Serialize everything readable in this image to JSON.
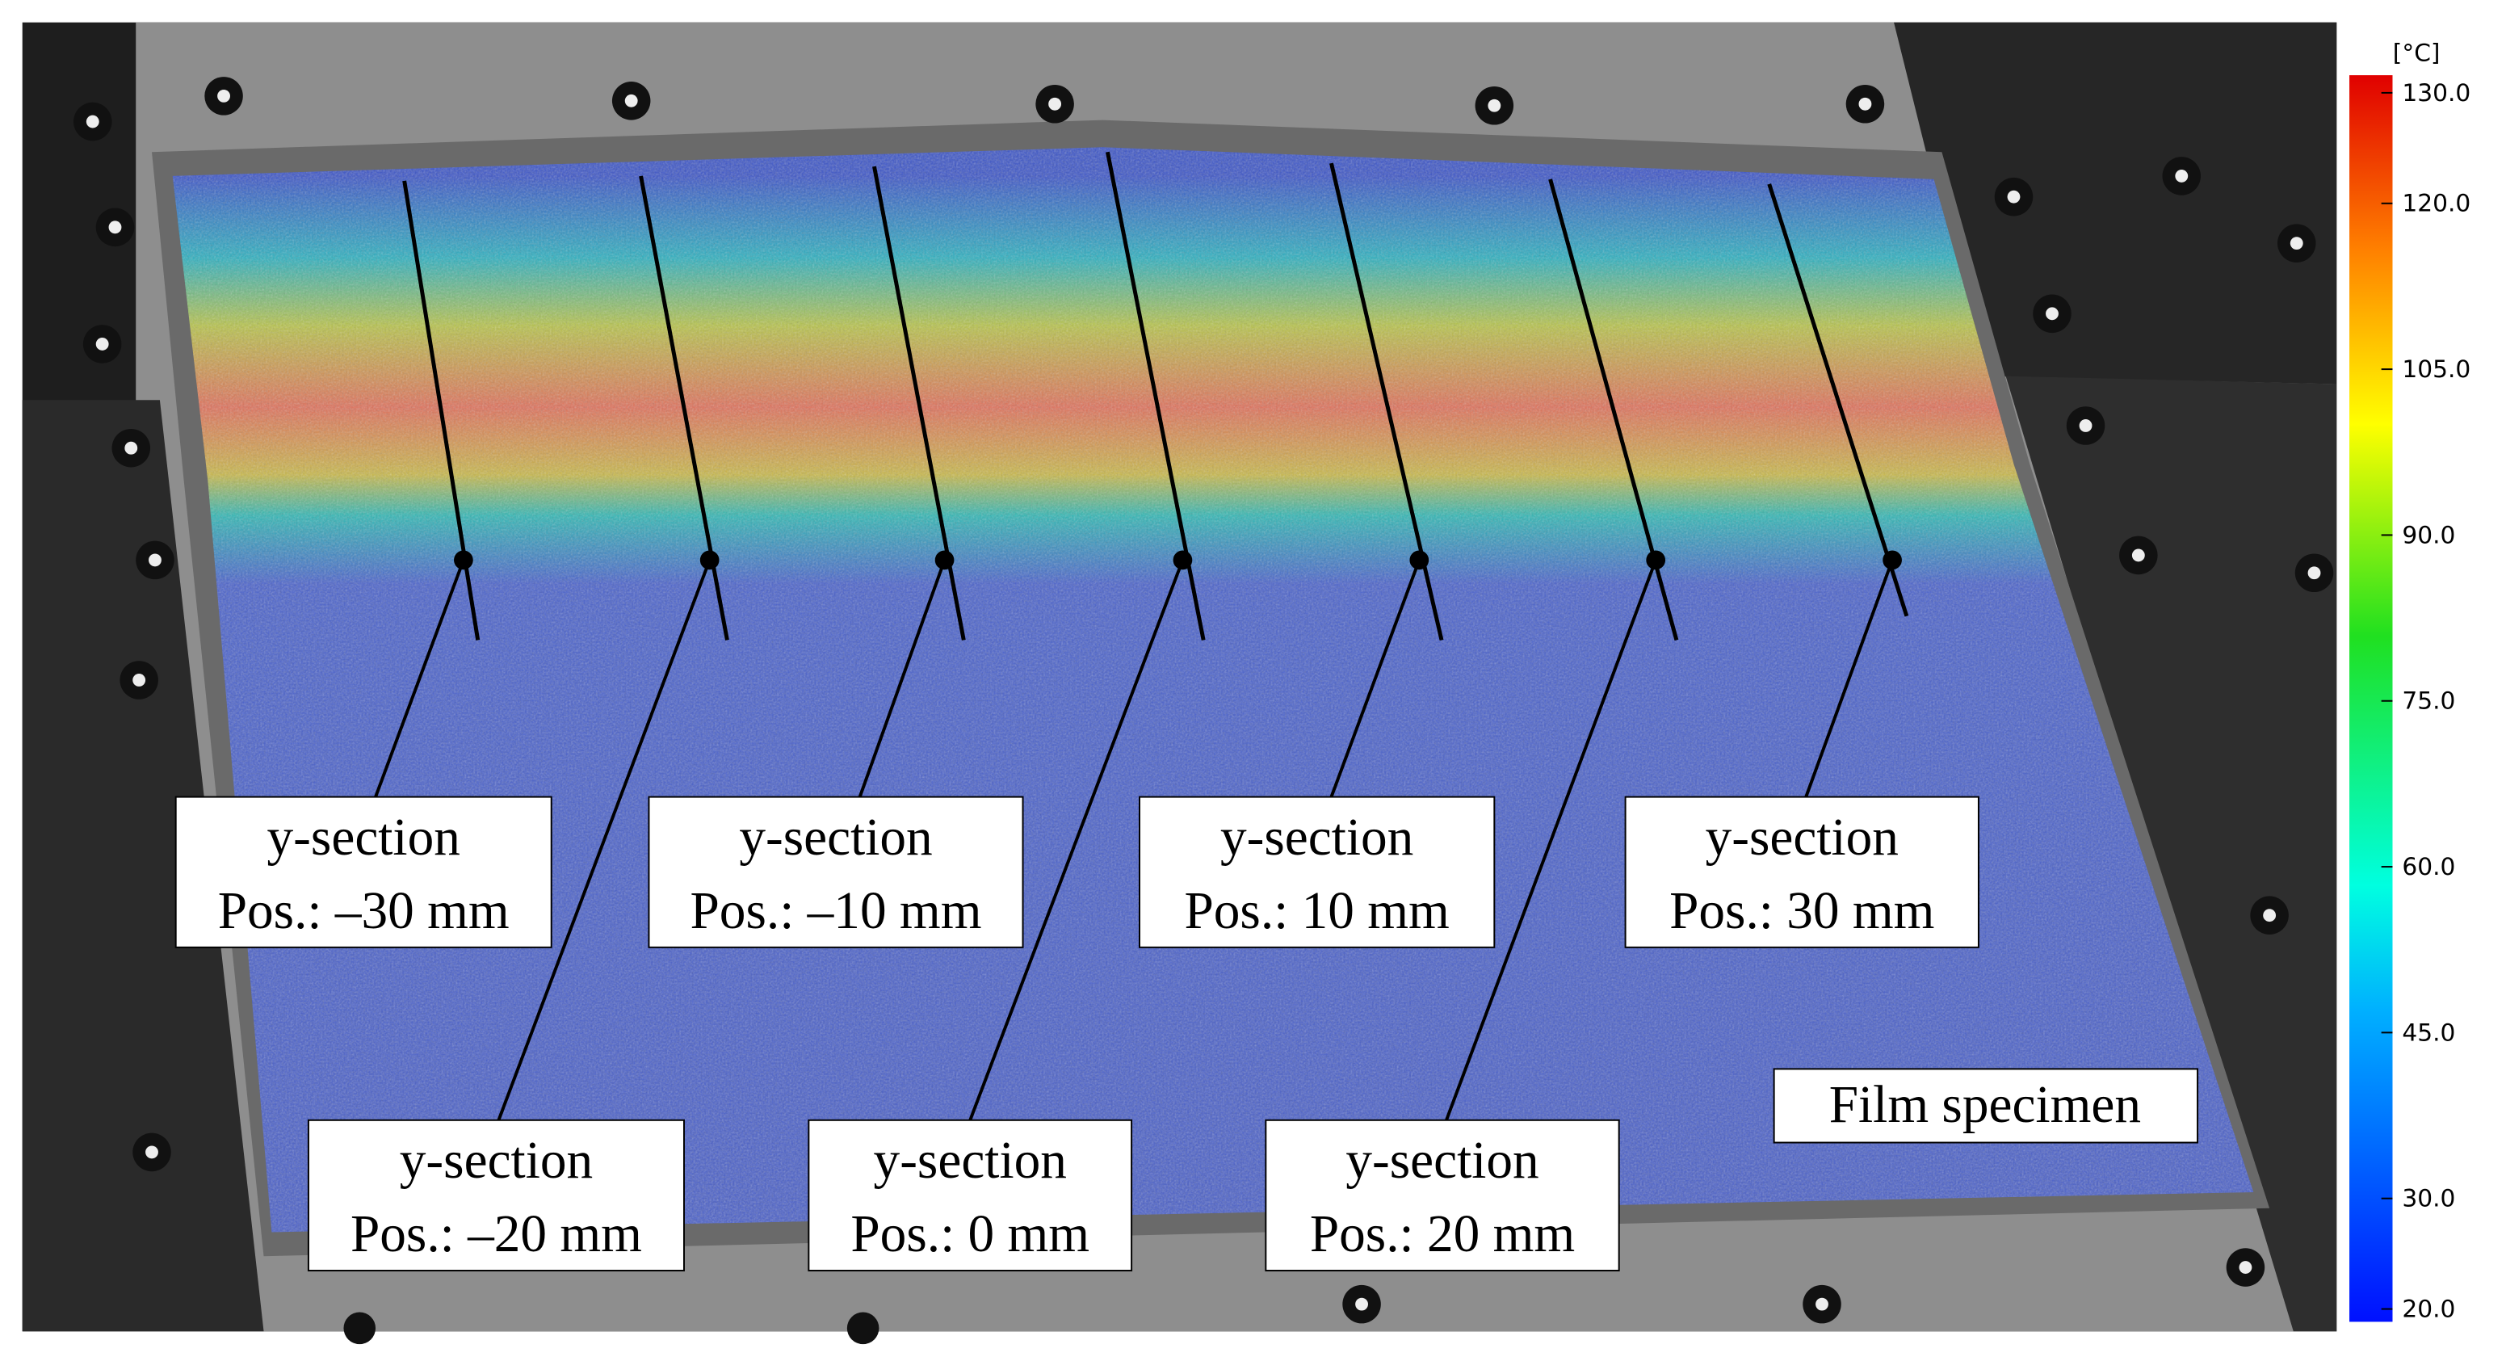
{
  "colorbar": {
    "unit": "[°C]",
    "range": [
      20,
      130
    ],
    "ticks": [
      {
        "value": 130,
        "label": "130.0"
      },
      {
        "value": 120,
        "label": "120.0"
      },
      {
        "value": 105,
        "label": "105.0"
      },
      {
        "value": 90,
        "label": "90.0"
      },
      {
        "value": 75,
        "label": "75.0"
      },
      {
        "value": 60,
        "label": "60.0"
      },
      {
        "value": 45,
        "label": "45.0"
      },
      {
        "value": 30,
        "label": "30.0"
      },
      {
        "value": 20,
        "label": "20.0"
      }
    ]
  },
  "labels": [
    {
      "line1": "y-section",
      "line2": "Pos.: –30 mm"
    },
    {
      "line1": "y-section",
      "line2": "Pos.: –20 mm"
    },
    {
      "line1": "y-section",
      "line2": "Pos.: –10 mm"
    },
    {
      "line1": "y-section",
      "line2": "Pos.: 0 mm"
    },
    {
      "line1": "y-section",
      "line2": "Pos.: 10 mm"
    },
    {
      "line1": "y-section",
      "line2": "Pos.: 20 mm"
    },
    {
      "line1": "y-section",
      "line2": "Pos.: 30 mm"
    }
  ],
  "specimen_label": "Film specimen"
}
